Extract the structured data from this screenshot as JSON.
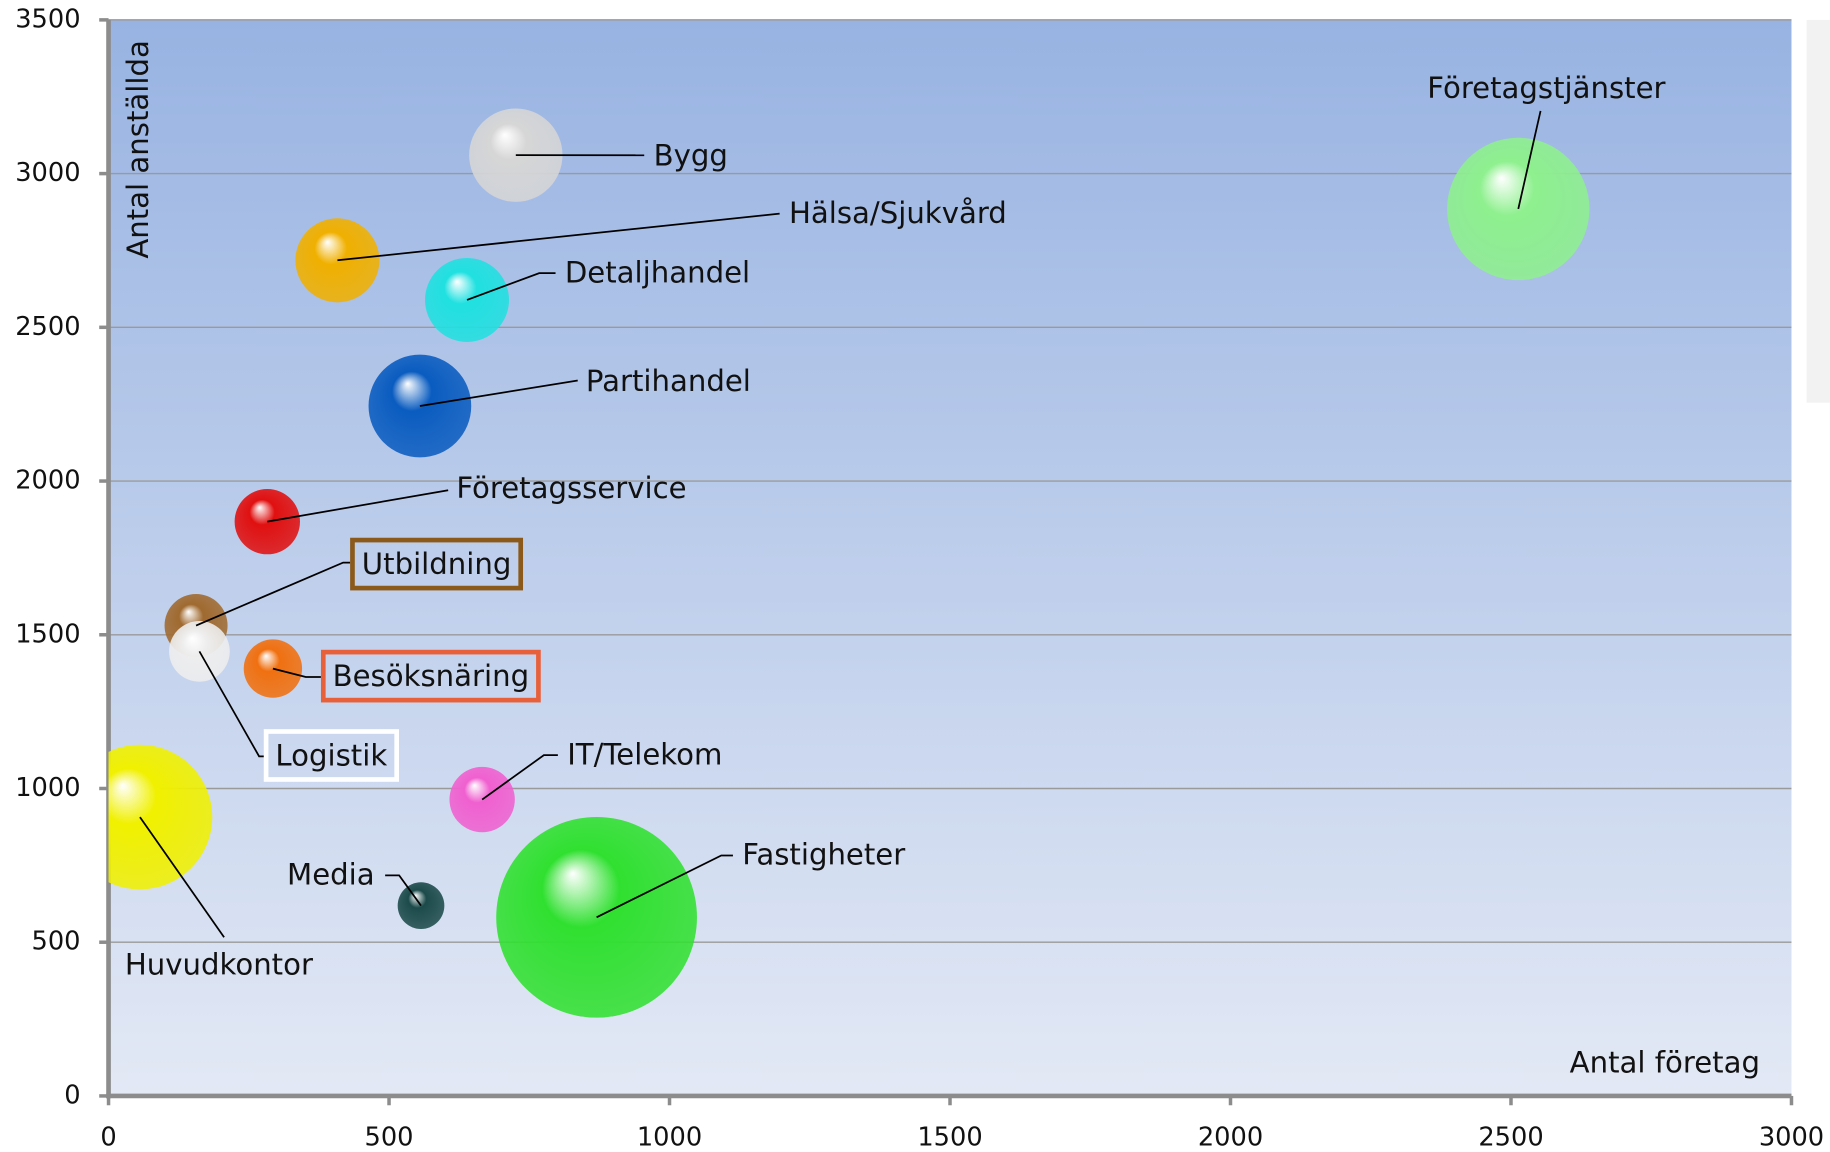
{
  "chart_data": {
    "type": "bubble",
    "x_label": "Antal företag",
    "y_label": "Antal anställda",
    "xlim": [
      0,
      3000
    ],
    "xticks": [
      0,
      500,
      1000,
      1500,
      2000,
      2500,
      3000
    ],
    "ylim": [
      0,
      3500
    ],
    "yticks": [
      0,
      500,
      1000,
      1500,
      2000,
      2500,
      3000,
      3500
    ],
    "grid": true,
    "points": [
      {
        "name": "Företagstjänster",
        "color": "#8ef08e",
        "x": 2513,
        "y": 2885,
        "size": 3721
      },
      {
        "name": "Bygg",
        "color": "#d6d6d6",
        "x": 726,
        "y": 3060,
        "size": 1600
      },
      {
        "name": "Hälsa/Sjukvård",
        "color": "#f0b000",
        "x": 408,
        "y": 2718,
        "size": 1296
      },
      {
        "name": "Detaljhandel",
        "color": "#20e0e0",
        "x": 639,
        "y": 2589,
        "size": 1296
      },
      {
        "name": "Partihandel",
        "color": "#0a5cc0",
        "x": 555,
        "y": 2244,
        "size": 1936
      },
      {
        "name": "Företagsservice",
        "color": "#e01010",
        "x": 283,
        "y": 1868,
        "size": 784
      },
      {
        "name": "Utbildning",
        "color": "#a06a30",
        "x": 156,
        "y": 1530,
        "size": 729,
        "label_border": "#8b5a1a"
      },
      {
        "name": "Logistik",
        "color": "#eeeeee",
        "x": 162,
        "y": 1446,
        "size": 676,
        "label_border": "#ffffff"
      },
      {
        "name": "Besöksnäring",
        "color": "#f07010",
        "x": 293,
        "y": 1390,
        "size": 625,
        "label_border": "#e8603a"
      },
      {
        "name": "IT/Telekom",
        "color": "#f060d0",
        "x": 666,
        "y": 964,
        "size": 784
      },
      {
        "name": "Huvudkontor",
        "color": "#f0f000",
        "x": 56,
        "y": 907,
        "size": 3844
      },
      {
        "name": "Media",
        "color": "#1c4a4a",
        "x": 557,
        "y": 619,
        "size": 400
      },
      {
        "name": "Fastigheter",
        "color": "#30e030",
        "x": 870,
        "y": 581,
        "size": 7396
      }
    ]
  }
}
